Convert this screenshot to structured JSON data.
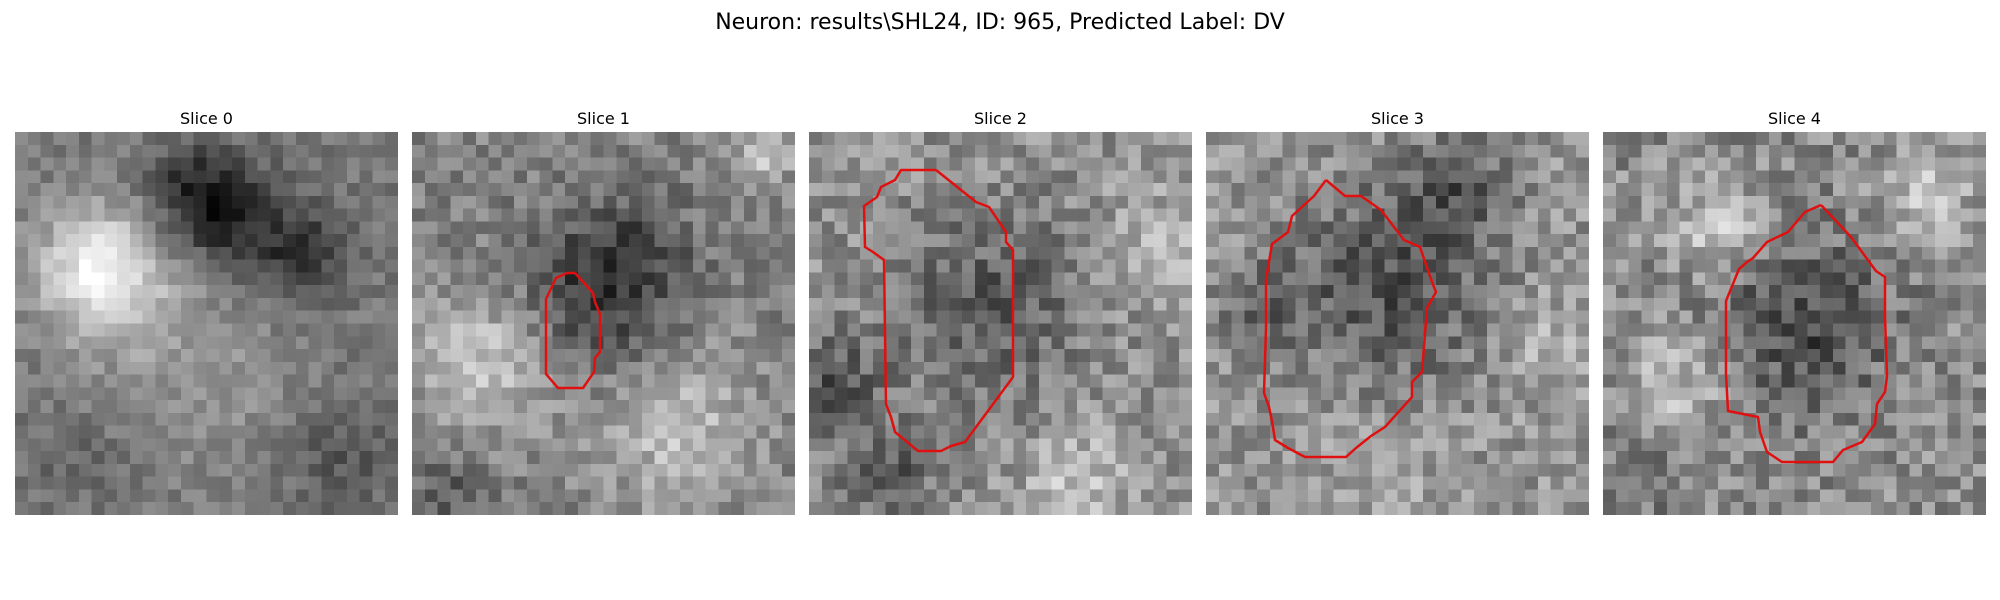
{
  "figure": {
    "title": "Neuron: results\\SHL24, ID: 965, Predicted Label: DV",
    "contour_color": "#e01010"
  },
  "slices": [
    {
      "title": "Slice 0",
      "has_contour": false
    },
    {
      "title": "Slice 1",
      "has_contour": true
    },
    {
      "title": "Slice 2",
      "has_contour": true
    },
    {
      "title": "Slice 3",
      "has_contour": true
    },
    {
      "title": "Slice 4",
      "has_contour": true
    }
  ]
}
